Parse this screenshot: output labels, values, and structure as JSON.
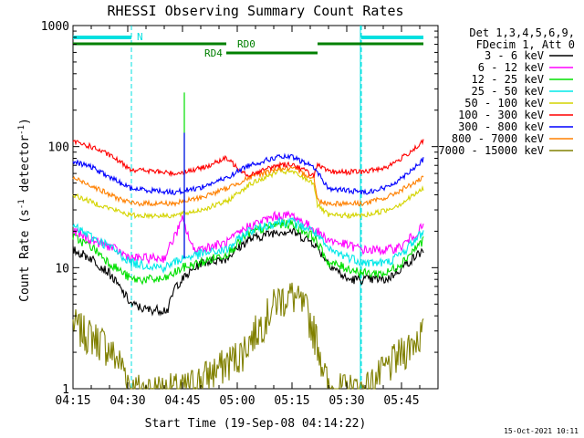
{
  "chart_data": {
    "type": "line",
    "title": "RHESSI Observing Summary Count Rates",
    "xlabel": "Start Time (19-Sep-08 04:14:22)",
    "ylabel": "Count Rate (s⁻¹ detector⁻¹)",
    "ylabel_base": "Count Rate (s",
    "ylabel_sup1": "-1",
    "ylabel_mid": " detector",
    "ylabel_sup2": "-1",
    "ylabel_end": ")",
    "yscale": "log",
    "ylim": [
      1,
      1000
    ],
    "xlim_minutes": [
      0,
      100
    ],
    "x_tick_labels": [
      "04:15",
      "04:30",
      "04:45",
      "05:00",
      "05:15",
      "05:30",
      "05:45"
    ],
    "x_tick_minutes": [
      0,
      15,
      30,
      45,
      60,
      75,
      90
    ],
    "y_tick_labels": [
      "1",
      "10",
      "100",
      "1000"
    ],
    "y_tick_values": [
      1,
      10,
      100,
      1000
    ],
    "grid": false,
    "legend_header": [
      "Det 1,3,4,5,6,9,",
      "FDecim 1, Att 0"
    ],
    "footer_date": "15-Oct-2021 10:11",
    "flags": {
      "night_label": "N",
      "rd0_label": "RD0",
      "rd4_label": "RD4",
      "night_bars": [
        [
          0,
          16
        ],
        [
          79,
          96
        ]
      ],
      "rd0_bars": [
        [
          0,
          42
        ],
        [
          67,
          96
        ]
      ],
      "rd4_bars": [
        [
          42,
          67
        ]
      ],
      "night_boundaries": [
        16,
        79
      ],
      "night_colors": "#00e0e0",
      "rd_color": "#008000"
    },
    "series": [
      {
        "name": "3 - 6 keV",
        "color": "#000000",
        "values": [
          [
            0,
            14
          ],
          [
            5,
            12
          ],
          [
            10,
            9
          ],
          [
            16,
            5
          ],
          [
            20,
            4.5
          ],
          [
            26,
            4.5
          ],
          [
            28,
            7
          ],
          [
            30,
            8
          ],
          [
            35,
            11
          ],
          [
            42,
            12
          ],
          [
            48,
            17
          ],
          [
            56,
            20
          ],
          [
            60,
            20
          ],
          [
            66,
            16
          ],
          [
            70,
            11
          ],
          [
            75,
            8
          ],
          [
            80,
            8
          ],
          [
            86,
            8
          ],
          [
            90,
            10
          ],
          [
            96,
            14
          ]
        ]
      },
      {
        "name": "6 - 12 keV",
        "color": "#ff00ff",
        "values": [
          [
            0,
            20
          ],
          [
            5,
            17
          ],
          [
            10,
            15
          ],
          [
            16,
            12
          ],
          [
            25,
            12
          ],
          [
            30,
            25
          ],
          [
            33,
            14
          ],
          [
            42,
            16
          ],
          [
            48,
            22
          ],
          [
            56,
            27
          ],
          [
            60,
            27
          ],
          [
            66,
            21
          ],
          [
            70,
            17
          ],
          [
            80,
            14
          ],
          [
            86,
            14
          ],
          [
            90,
            15
          ],
          [
            96,
            22
          ]
        ]
      },
      {
        "name": "12 - 25 keV",
        "color": "#00e000",
        "values": [
          [
            0,
            18
          ],
          [
            5,
            15
          ],
          [
            10,
            11
          ],
          [
            16,
            8
          ],
          [
            25,
            8
          ],
          [
            30,
            10
          ],
          [
            35,
            11
          ],
          [
            42,
            13
          ],
          [
            48,
            19
          ],
          [
            56,
            23
          ],
          [
            60,
            23
          ],
          [
            66,
            18
          ],
          [
            70,
            11
          ],
          [
            80,
            9
          ],
          [
            86,
            9
          ],
          [
            90,
            11
          ],
          [
            96,
            17
          ]
        ]
      },
      {
        "name": "25 - 50 keV",
        "color": "#00e8e8",
        "values": [
          [
            0,
            22
          ],
          [
            5,
            18
          ],
          [
            10,
            15
          ],
          [
            16,
            11
          ],
          [
            25,
            10
          ],
          [
            30,
            12
          ],
          [
            35,
            13
          ],
          [
            42,
            14
          ],
          [
            48,
            20
          ],
          [
            56,
            24
          ],
          [
            60,
            24
          ],
          [
            66,
            20
          ],
          [
            70,
            14
          ],
          [
            80,
            11
          ],
          [
            86,
            11
          ],
          [
            90,
            13
          ],
          [
            96,
            20
          ]
        ]
      },
      {
        "name": "50 - 100 keV",
        "color": "#d4d400",
        "values": [
          [
            0,
            40
          ],
          [
            5,
            35
          ],
          [
            10,
            31
          ],
          [
            16,
            27
          ],
          [
            28,
            27
          ],
          [
            35,
            30
          ],
          [
            42,
            35
          ],
          [
            48,
            48
          ],
          [
            56,
            62
          ],
          [
            60,
            62
          ],
          [
            66,
            50
          ],
          [
            67,
            33
          ],
          [
            70,
            27
          ],
          [
            80,
            27
          ],
          [
            86,
            30
          ],
          [
            90,
            34
          ],
          [
            96,
            45
          ]
        ]
      },
      {
        "name": "100 - 300 keV",
        "color": "#ff0000",
        "values": [
          [
            0,
            110
          ],
          [
            5,
            100
          ],
          [
            10,
            85
          ],
          [
            16,
            65
          ],
          [
            28,
            60
          ],
          [
            35,
            66
          ],
          [
            42,
            80
          ],
          [
            48,
            58
          ],
          [
            56,
            70
          ],
          [
            60,
            72
          ],
          [
            66,
            58
          ],
          [
            67,
            70
          ],
          [
            70,
            62
          ],
          [
            80,
            62
          ],
          [
            86,
            68
          ],
          [
            90,
            80
          ],
          [
            96,
            110
          ]
        ]
      },
      {
        "name": "300 - 800 keV",
        "color": "#0000ff",
        "values": [
          [
            0,
            75
          ],
          [
            5,
            68
          ],
          [
            10,
            56
          ],
          [
            16,
            45
          ],
          [
            28,
            42
          ],
          [
            35,
            46
          ],
          [
            42,
            55
          ],
          [
            48,
            70
          ],
          [
            56,
            82
          ],
          [
            60,
            82
          ],
          [
            66,
            68
          ],
          [
            70,
            45
          ],
          [
            80,
            42
          ],
          [
            86,
            46
          ],
          [
            90,
            55
          ],
          [
            96,
            78
          ]
        ]
      },
      {
        "name": "800 - 7000 keV",
        "color": "#ff8000",
        "values": [
          [
            0,
            55
          ],
          [
            5,
            48
          ],
          [
            10,
            40
          ],
          [
            16,
            34
          ],
          [
            28,
            34
          ],
          [
            35,
            38
          ],
          [
            42,
            45
          ],
          [
            48,
            55
          ],
          [
            56,
            66
          ],
          [
            60,
            66
          ],
          [
            66,
            55
          ],
          [
            67,
            36
          ],
          [
            70,
            34
          ],
          [
            80,
            34
          ],
          [
            86,
            38
          ],
          [
            90,
            44
          ],
          [
            96,
            55
          ]
        ]
      },
      {
        "name": "7000 - 15000 keV",
        "color": "#808000",
        "values": [
          [
            0,
            3.5
          ],
          [
            3,
            3
          ],
          [
            8,
            2.5
          ],
          [
            14,
            1.5
          ],
          [
            16,
            1
          ],
          [
            30,
            1
          ],
          [
            40,
            1.5
          ],
          [
            46,
            2
          ],
          [
            50,
            3
          ],
          [
            56,
            5.5
          ],
          [
            60,
            6
          ],
          [
            64,
            4.5
          ],
          [
            67,
            2.5
          ],
          [
            70,
            1
          ],
          [
            80,
            1
          ],
          [
            86,
            1.5
          ],
          [
            90,
            2
          ],
          [
            96,
            3
          ]
        ]
      }
    ],
    "annotations": [
      {
        "name": "spike-green",
        "x": 30.5,
        "y": 280,
        "color": "#00e000"
      },
      {
        "name": "spike-blue",
        "x": 30.5,
        "y": 130,
        "color": "#0000ff"
      }
    ]
  }
}
